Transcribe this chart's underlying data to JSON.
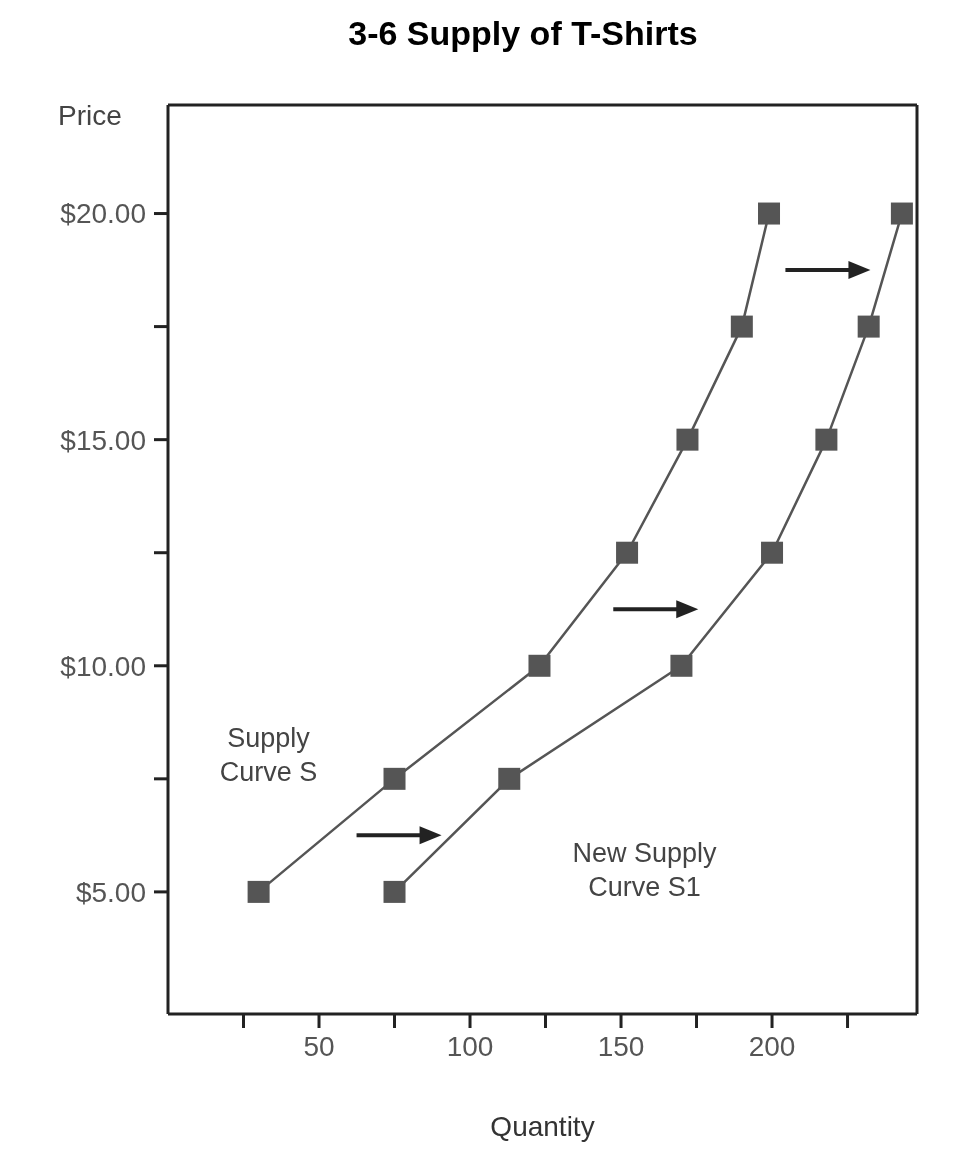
{
  "chart_data": {
    "type": "line",
    "title": "3-6 Supply of T-Shirts",
    "xlabel": "Quantity",
    "ylabel": "Price",
    "xlim": [
      0,
      248
    ],
    "xticks": [
      {
        "value": 25,
        "label": null
      },
      50,
      {
        "value": 75,
        "label": null
      },
      100,
      {
        "value": 125,
        "label": null
      },
      150,
      {
        "value": 175,
        "label": null
      },
      200,
      {
        "value": 225,
        "label": null
      }
    ],
    "ylim": [
      2.3,
      22.4
    ],
    "yticks": [
      {
        "value": 5,
        "label": "$5.00"
      },
      {
        "value": 7.5,
        "label": null
      },
      {
        "value": 10,
        "label": "$10.00"
      },
      {
        "value": 12.5,
        "label": null
      },
      {
        "value": 15,
        "label": "$15.00"
      },
      {
        "value": 17.5,
        "label": null
      },
      {
        "value": 20,
        "label": "$20.00"
      }
    ],
    "legend": false,
    "marker": "square",
    "line_style": "solid",
    "series": [
      {
        "name": "Supply Curve S",
        "color": "#555555",
        "x": [
          30,
          75,
          123,
          152,
          172,
          190,
          199
        ],
        "values": [
          5,
          7.5,
          10,
          12.5,
          15,
          17.5,
          20
        ]
      },
      {
        "name": "New Supply Curve S1",
        "color": "#555555",
        "x": [
          75,
          113,
          170,
          200,
          218,
          232,
          243
        ],
        "values": [
          5,
          7.5,
          10,
          12.5,
          15,
          17.5,
          20
        ]
      }
    ]
  }
}
